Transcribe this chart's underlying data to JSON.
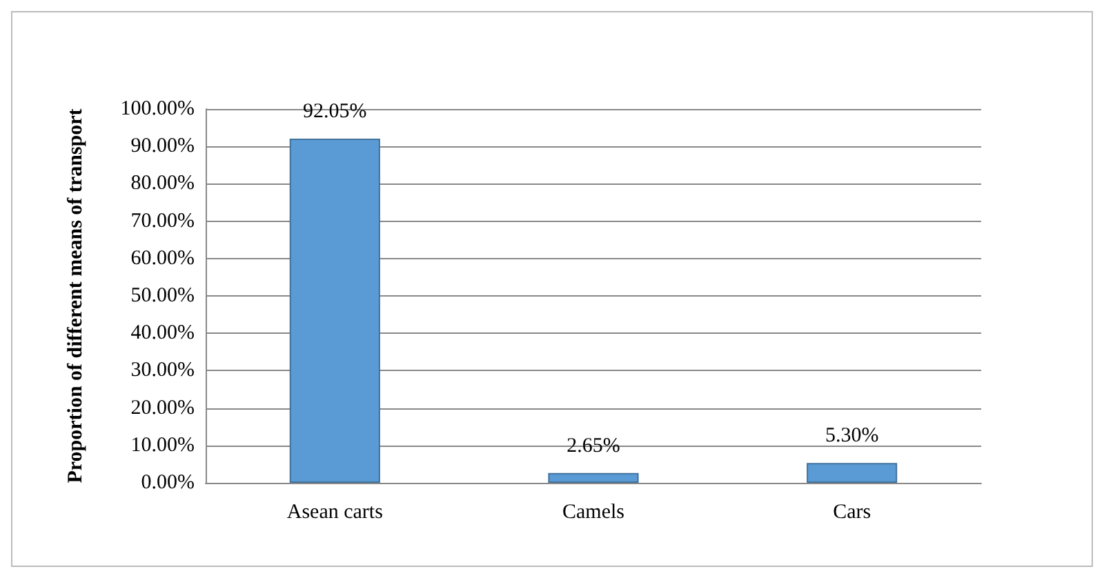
{
  "chart_data": {
    "type": "bar",
    "ylabel": "Proportion of different means of transport",
    "categories": [
      "Asean carts",
      "Camels",
      "Cars"
    ],
    "values": [
      92.05,
      2.65,
      5.3
    ],
    "color": "#5b9bd5",
    "value_labels": [
      "92.05%",
      "2.65%",
      "5.30%"
    ],
    "ylim": [
      0,
      100
    ],
    "yticks": [
      {
        "value": 0,
        "label": "0.00%"
      },
      {
        "value": 10,
        "label": "10.00%"
      },
      {
        "value": 20,
        "label": "20.00%"
      },
      {
        "value": 30,
        "label": "30.00%"
      },
      {
        "value": 40,
        "label": "40.00%"
      },
      {
        "value": 50,
        "label": "50.00%"
      },
      {
        "value": 60,
        "label": "60.00%"
      },
      {
        "value": 70,
        "label": "70.00%"
      },
      {
        "value": 80,
        "label": "80.00%"
      },
      {
        "value": 90,
        "label": "90.00%"
      },
      {
        "value": 100,
        "label": "100.00%"
      }
    ],
    "grid": true
  }
}
